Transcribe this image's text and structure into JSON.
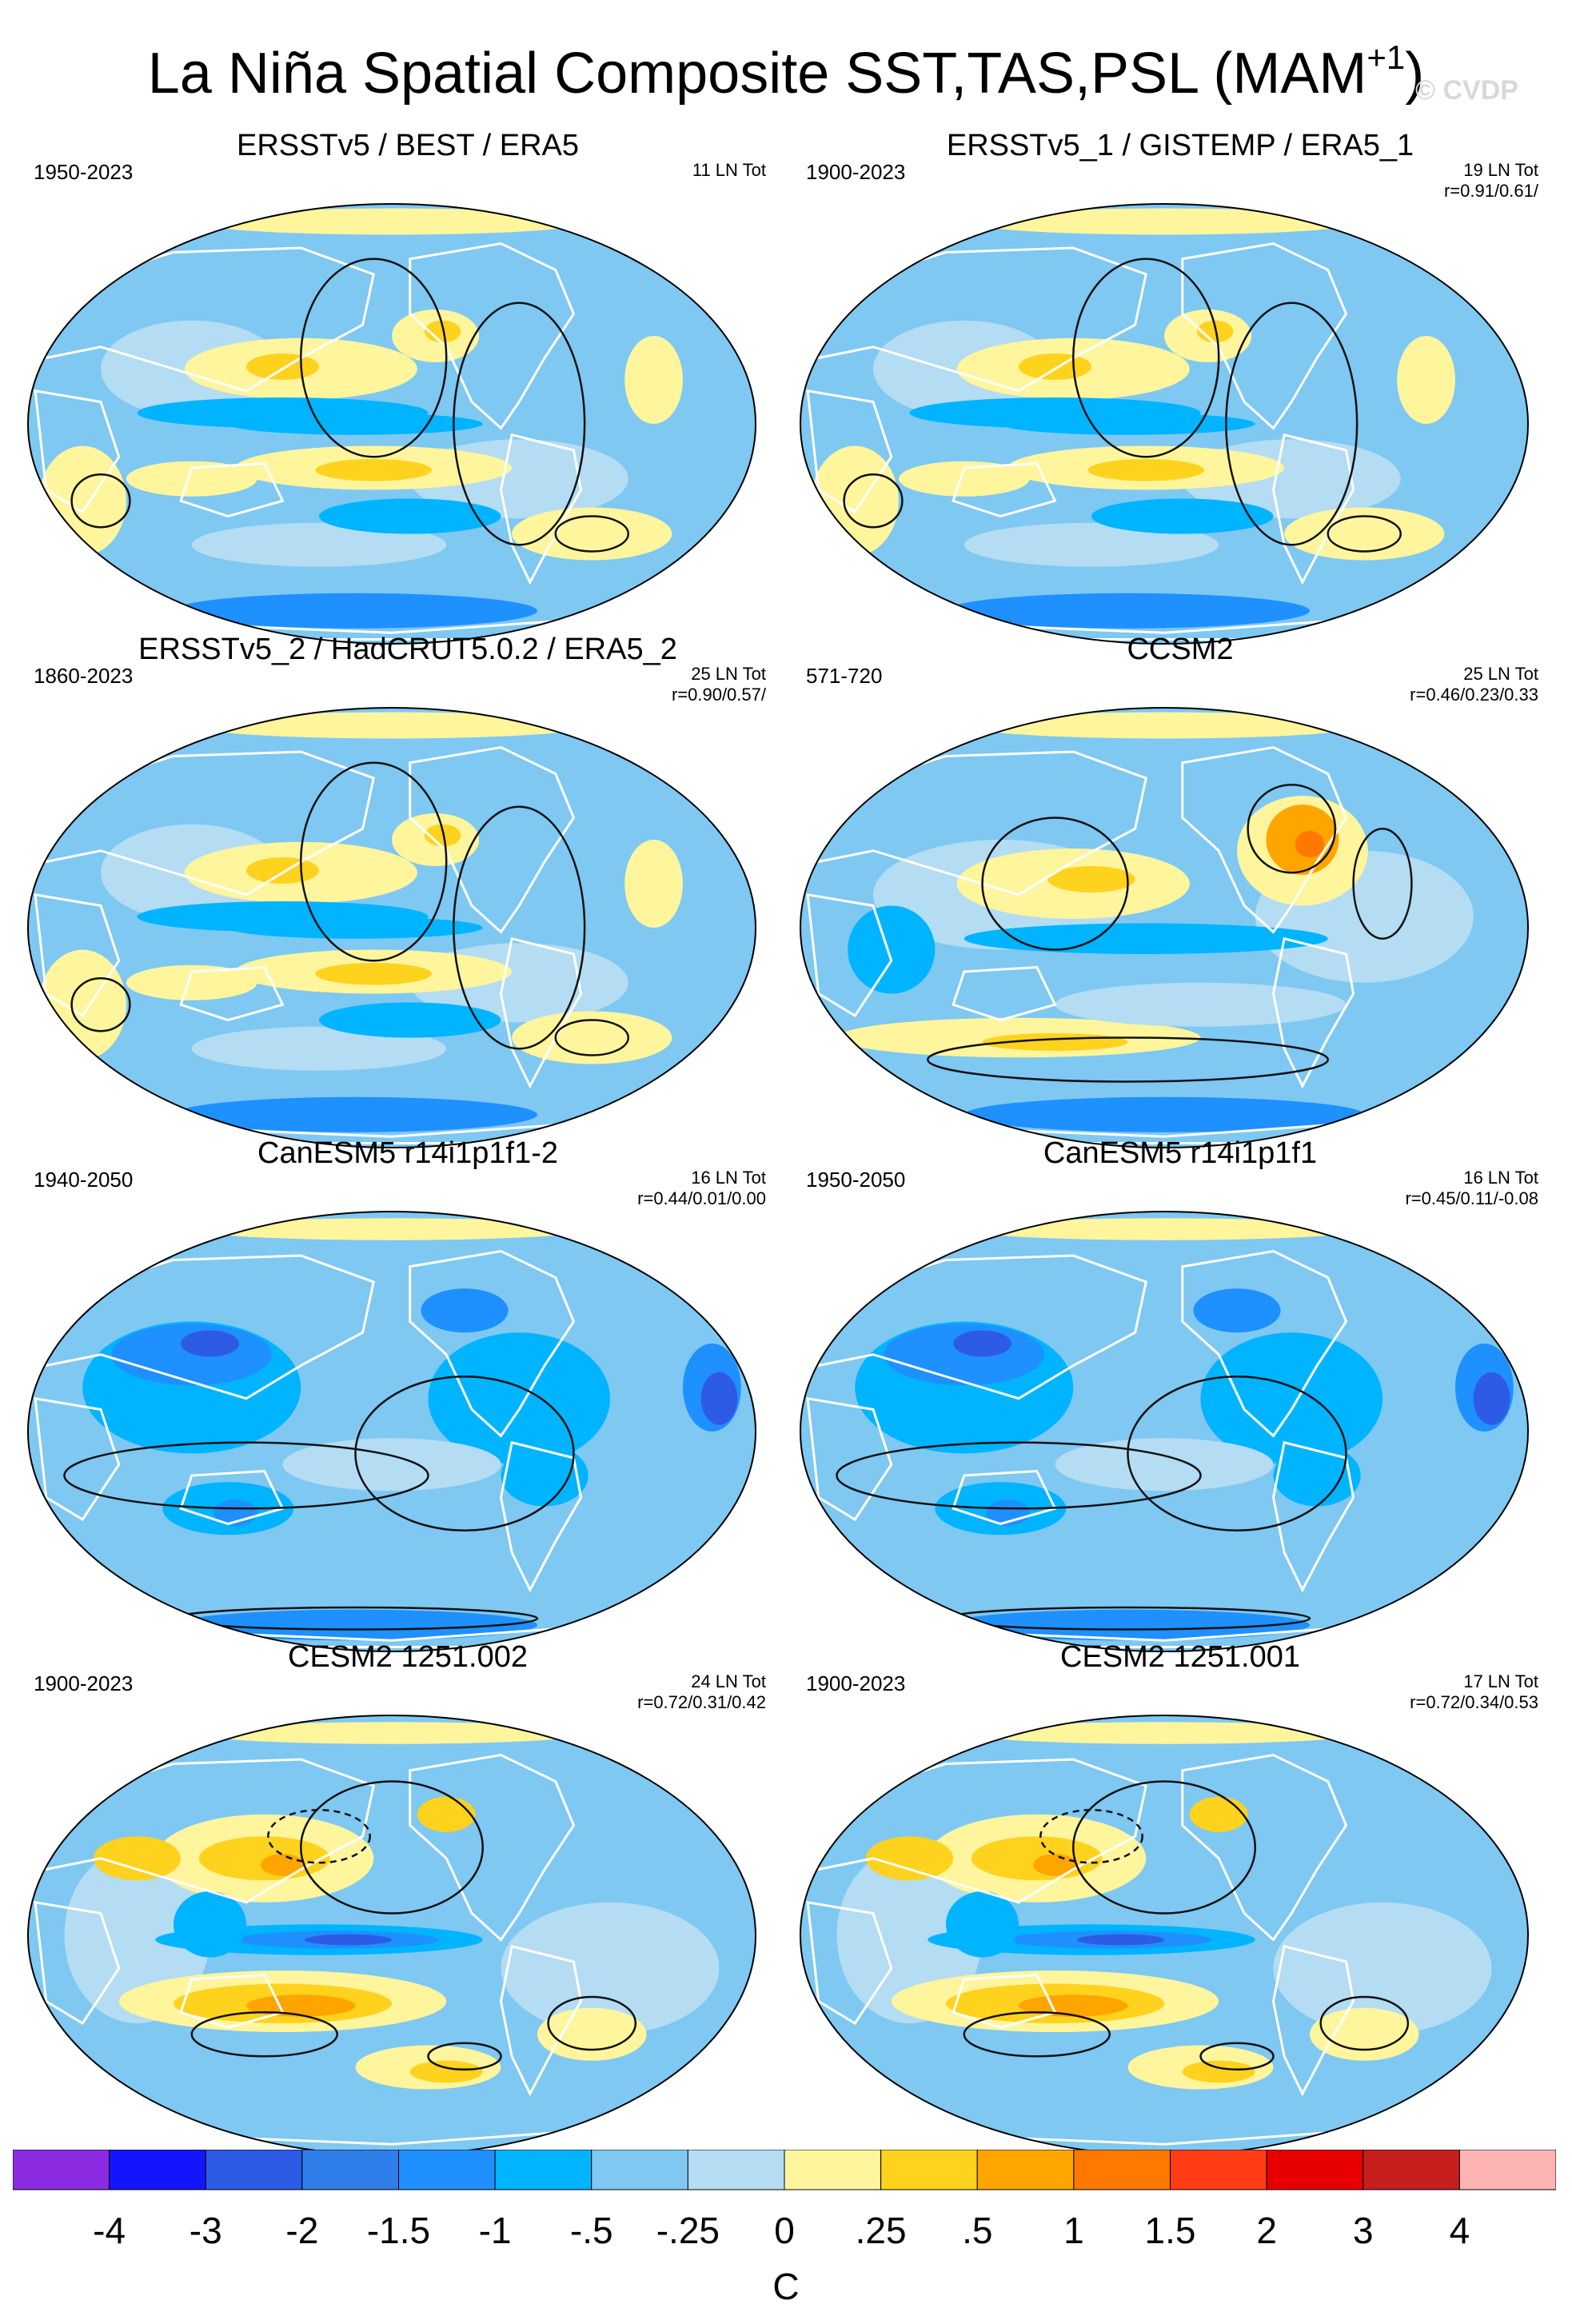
{
  "title": "La Niña Spatial Composite SST,TAS,PSL (MAM",
  "title_sup": "+1",
  "title_close": ")",
  "watermark": "© CVDP",
  "panels": [
    {
      "title": "ERSSTv5 / BEST / ERA5",
      "period": "1950-2023",
      "count": "11 LN Tot",
      "corr": "",
      "scheme": "obs"
    },
    {
      "title": "ERSSTv5_1 / GISTEMP / ERA5_1",
      "period": "1900-2023",
      "count": "19 LN Tot",
      "corr": "r=0.91/0.61/",
      "scheme": "obs"
    },
    {
      "title": "ERSSTv5_2 / HadCRUT5.0.2 / ERA5_2",
      "period": "1860-2023",
      "count": "25 LN Tot",
      "corr": "r=0.90/0.57/",
      "scheme": "obs"
    },
    {
      "title": "CCSM2",
      "period": "571-720",
      "count": "25 LN Tot",
      "corr": "r=0.46/0.23/0.33",
      "scheme": "ccsm"
    },
    {
      "title": "CanESM5 r14i1p1f1-2",
      "period": "1940-2050",
      "count": "16 LN Tot",
      "corr": "r=0.44/0.01/0.00",
      "scheme": "can"
    },
    {
      "title": "CanESM5 r14i1p1f1",
      "period": "1950-2050",
      "count": "16 LN Tot",
      "corr": "r=0.45/0.11/-0.08",
      "scheme": "can"
    },
    {
      "title": "CESM2 1251.002",
      "period": "1900-2023",
      "count": "24 LN Tot",
      "corr": "r=0.72/0.31/0.42",
      "scheme": "cesm"
    },
    {
      "title": "CESM2 1251.001",
      "period": "1900-2023",
      "count": "17 LN Tot",
      "corr": "r=0.72/0.34/0.53",
      "scheme": "cesm"
    }
  ],
  "colorbar": {
    "colors": [
      "#8a2be2",
      "#1414ff",
      "#2d5be6",
      "#2f7de8",
      "#1e90ff",
      "#00b4ff",
      "#7ec8f2",
      "#b4dcf2",
      "#fff59d",
      "#ffd21e",
      "#ffa500",
      "#ff7800",
      "#ff3c14",
      "#e60000",
      "#c81e1e",
      "#ffb4b4"
    ],
    "labels": [
      "-4",
      "-3",
      "-2",
      "-1.5",
      "-1",
      "-.5",
      "-.25",
      "0",
      ".25",
      ".5",
      "1",
      "1.5",
      "2",
      "3",
      "4"
    ],
    "units": "C"
  }
}
